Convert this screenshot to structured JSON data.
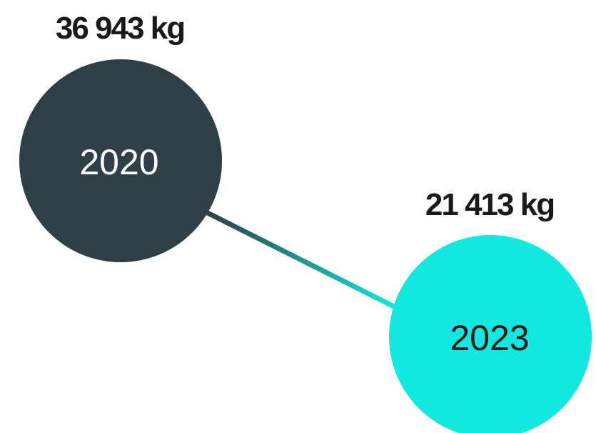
{
  "nodes": [
    {
      "label": "2020",
      "value_label": "36 943 kg"
    },
    {
      "label": "2023",
      "value_label": "21 413 kg"
    }
  ]
}
